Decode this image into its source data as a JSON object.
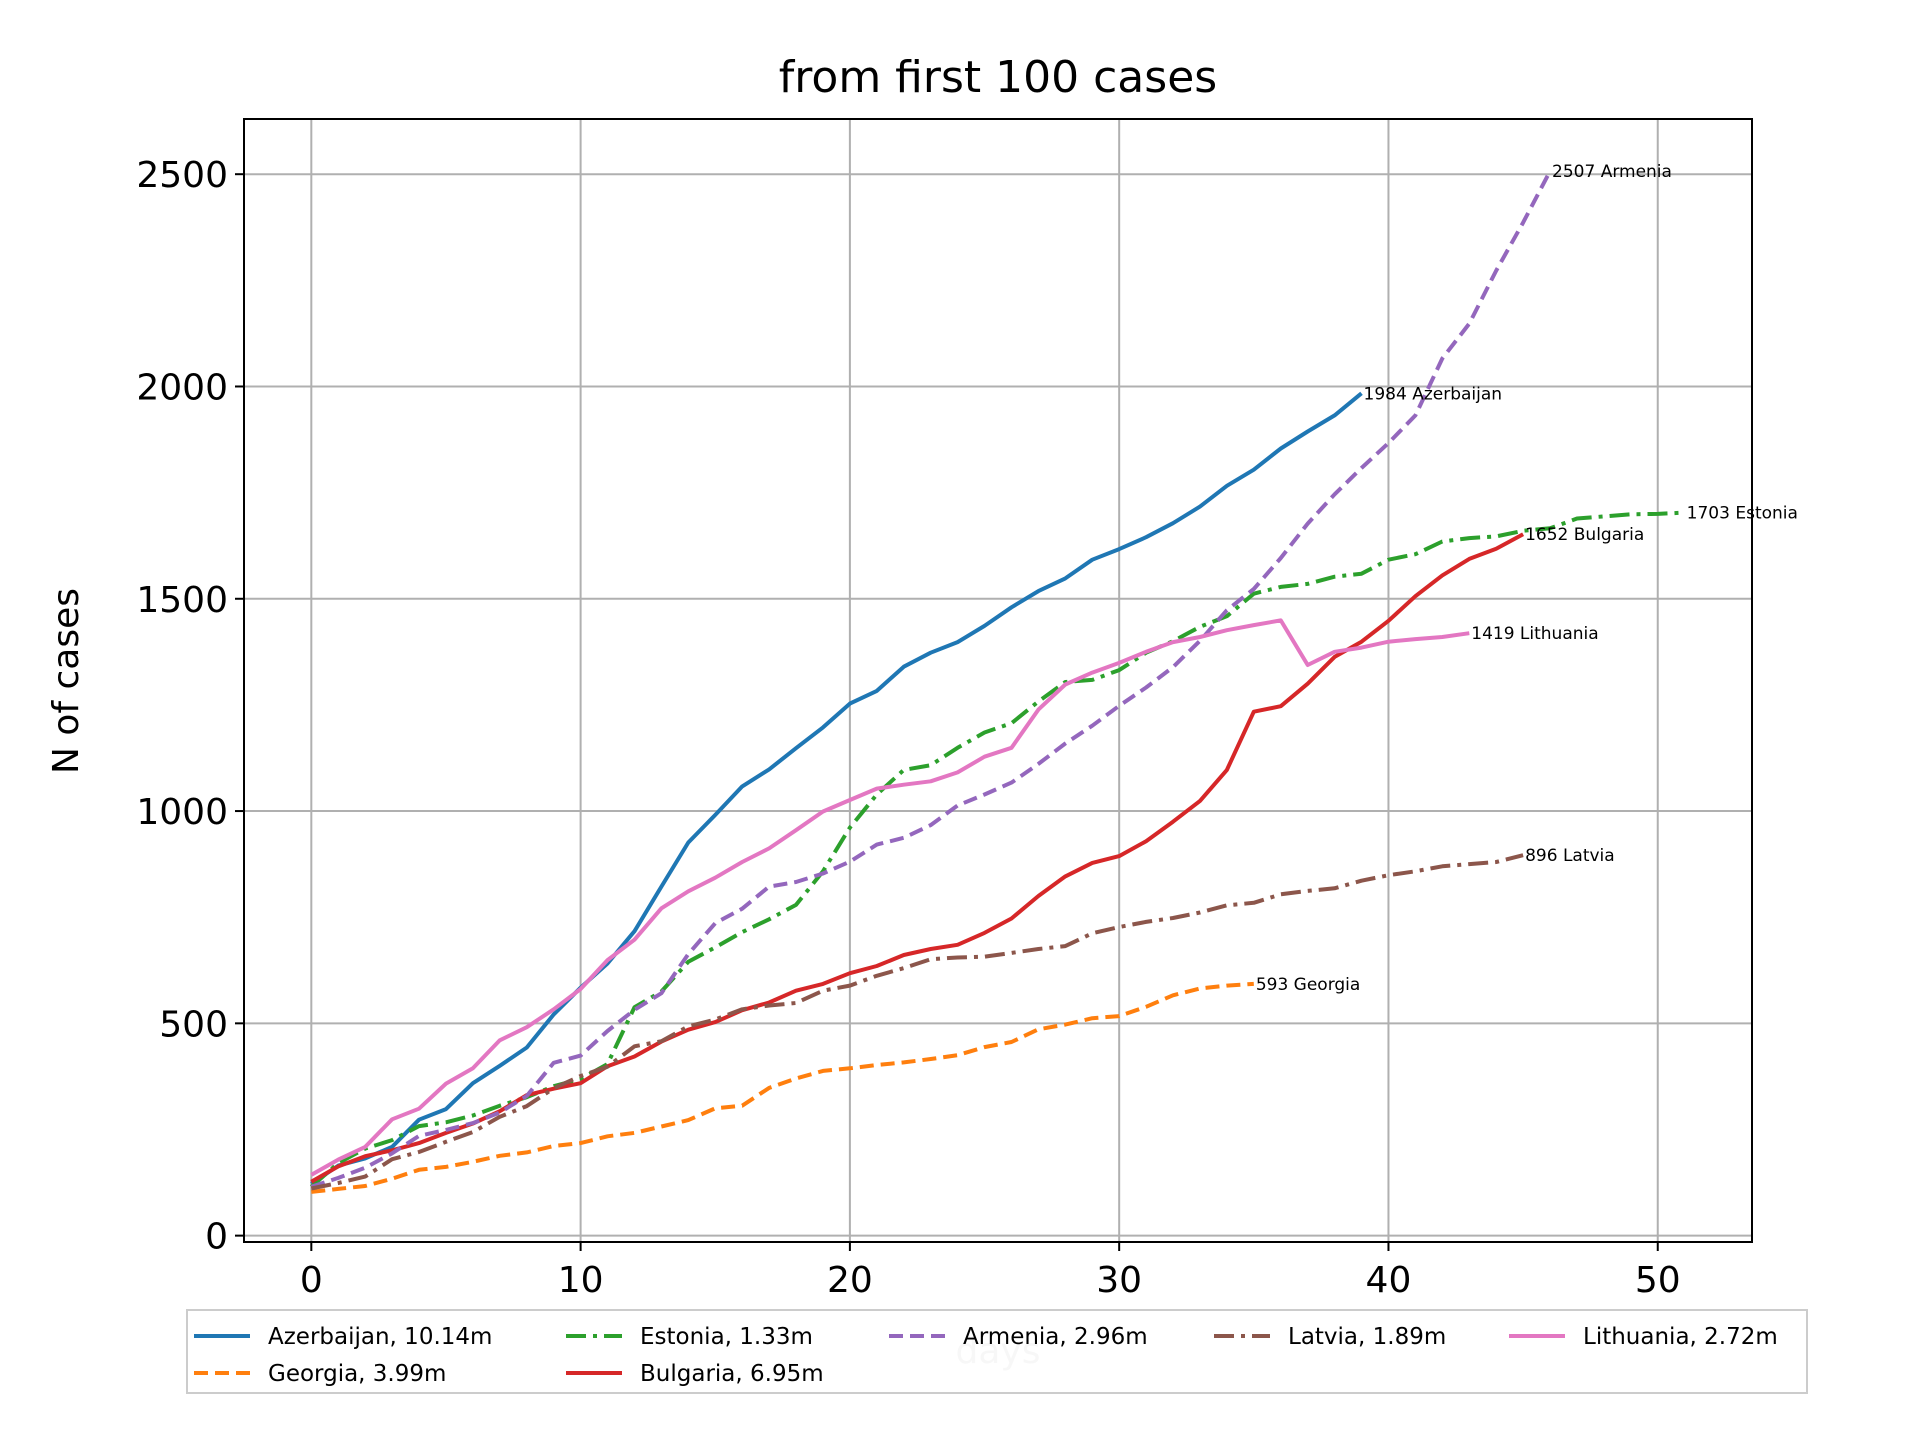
{
  "chart_data": {
    "type": "line",
    "title": "from first 100  cases",
    "xlabel": "days",
    "ylabel": "N of cases",
    "xlim": [
      -2.5,
      53.5
    ],
    "ylim": [
      -15,
      2630
    ],
    "xticks": [
      0,
      10,
      20,
      30,
      40,
      50
    ],
    "yticks": [
      0,
      500,
      1000,
      1500,
      2000,
      2500
    ],
    "grid": true,
    "legend_position": "below plot",
    "series": [
      {
        "name": "Azerbaijan, 10.14m",
        "color": "#1f77b4",
        "style": "solid",
        "end_label": "1984 Azerbaijan",
        "y": [
          122,
          165,
          182,
          209,
          273,
          298,
          359,
          400,
          443,
          521,
          584,
          641,
          717,
          822,
          926,
          991,
          1058,
          1098,
          1148,
          1197,
          1253,
          1283,
          1340,
          1373,
          1398,
          1436,
          1480,
          1518,
          1548,
          1592,
          1617,
          1645,
          1678,
          1717,
          1766,
          1804,
          1854,
          1894,
          1932,
          1984
        ]
      },
      {
        "name": "Georgia, 3.99m",
        "color": "#ff7f0e",
        "style": "dashed",
        "end_label": "593 Georgia",
        "y": [
          103,
          110,
          117,
          134,
          155,
          162,
          174,
          188,
          196,
          211,
          218,
          234,
          242,
          257,
          272,
          300,
          306,
          348,
          370,
          388,
          394,
          402,
          408,
          416,
          425,
          444,
          456,
          486,
          497,
          512,
          517,
          539,
          566,
          582,
          589,
          593
        ]
      },
      {
        "name": "Estonia, 1.33m",
        "color": "#2ca02c",
        "style": "dashdot",
        "end_label": "1703 Estonia",
        "y": [
          115,
          171,
          205,
          225,
          258,
          267,
          283,
          306,
          326,
          352,
          369,
          404,
          538,
          575,
          645,
          679,
          715,
          745,
          779,
          858,
          961,
          1039,
          1097,
          1108,
          1149,
          1185,
          1207,
          1258,
          1304,
          1309,
          1332,
          1373,
          1400,
          1434,
          1459,
          1512,
          1528,
          1535,
          1552,
          1559,
          1592,
          1605,
          1635,
          1643,
          1647,
          1660,
          1666,
          1689,
          1694,
          1699,
          1700,
          1703
        ]
      },
      {
        "name": "Bulgaria, 6.95m",
        "color": "#d62728",
        "style": "solid",
        "end_label": "1652 Bulgaria",
        "y": [
          127,
          163,
          187,
          201,
          218,
          242,
          264,
          293,
          331,
          346,
          359,
          399,
          422,
          457,
          485,
          503,
          531,
          549,
          577,
          593,
          618,
          635,
          661,
          675,
          685,
          713,
          747,
          800,
          846,
          878,
          894,
          929,
          975,
          1024,
          1097,
          1234,
          1247,
          1300,
          1363,
          1399,
          1448,
          1506,
          1555,
          1594,
          1618,
          1652
        ]
      },
      {
        "name": "Armenia, 2.96m",
        "color": "#9467bd",
        "style": "dashed",
        "end_label": "2507 Armenia",
        "y": [
          115,
          136,
          160,
          194,
          235,
          249,
          265,
          290,
          329,
          407,
          424,
          482,
          532,
          571,
          663,
          736,
          770,
          822,
          833,
          853,
          881,
          921,
          937,
          967,
          1013,
          1039,
          1067,
          1111,
          1159,
          1201,
          1248,
          1291,
          1339,
          1401,
          1473,
          1523,
          1596,
          1677,
          1746,
          1808,
          1867,
          1932,
          2066,
          2148,
          2273,
          2386,
          2507
        ]
      },
      {
        "name": "Latvia, 1.89m",
        "color": "#8c564b",
        "style": "dashdot",
        "end_label": "896 Latvia",
        "y": [
          111,
          124,
          139,
          180,
          197,
          221,
          244,
          280,
          305,
          347,
          376,
          398,
          446,
          458,
          493,
          509,
          533,
          542,
          548,
          577,
          589,
          612,
          630,
          651,
          655,
          657,
          666,
          675,
          682,
          712,
          727,
          739,
          748,
          761,
          778,
          784,
          804,
          812,
          818,
          836,
          849,
          858,
          870,
          875,
          880,
          896
        ]
      },
      {
        "name": "Lithuania, 2.72m",
        "color": "#e377c2",
        "style": "solid",
        "end_label": "1419 Lithuania",
        "y": [
          143,
          179,
          209,
          274,
          299,
          358,
          394,
          460,
          491,
          533,
          581,
          649,
          697,
          771,
          811,
          843,
          880,
          912,
          955,
          999,
          1026,
          1053,
          1062,
          1070,
          1091,
          1128,
          1149,
          1239,
          1298,
          1326,
          1349,
          1375,
          1398,
          1410,
          1426,
          1438,
          1449,
          1344,
          1375,
          1385,
          1399,
          1405,
          1410,
          1419
        ]
      }
    ]
  }
}
